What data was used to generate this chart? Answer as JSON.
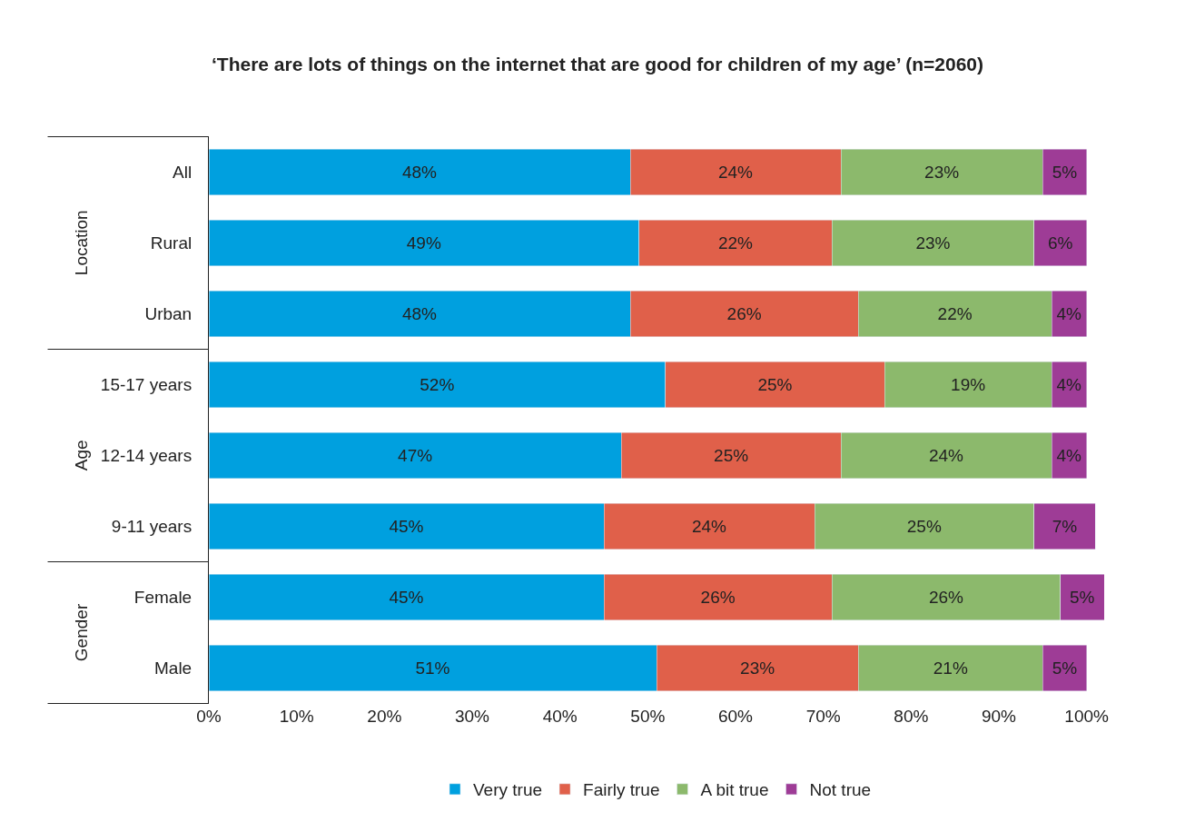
{
  "chart_data": {
    "type": "bar",
    "orientation": "horizontal",
    "stacked": true,
    "title": "‘There are lots of things on the internet that are good for children of my age’ (n=2060)",
    "categories": [
      "All",
      "Rural",
      "Urban",
      "15-17 years",
      "12-14 years",
      "9-11 years",
      "Female",
      "Male"
    ],
    "series": [
      {
        "name": "Very true",
        "color": "#00a0df",
        "values": [
          48,
          49,
          48,
          52,
          47,
          45,
          45,
          51
        ],
        "value_labels": [
          "48%",
          "49%",
          "48%",
          "52%",
          "47%",
          "45%",
          "45%",
          "51%"
        ]
      },
      {
        "name": "Fairly true",
        "color": "#e0604a",
        "values": [
          24,
          22,
          26,
          25,
          25,
          24,
          26,
          23
        ],
        "value_labels": [
          "24%",
          "22%",
          "26%",
          "25%",
          "25%",
          "24%",
          "26%",
          "23%"
        ]
      },
      {
        "name": "A bit true",
        "color": "#8cb96c",
        "values": [
          23,
          23,
          22,
          19,
          24,
          25,
          26,
          21
        ],
        "value_labels": [
          "23%",
          "23%",
          "22%",
          "19%",
          "24%",
          "25%",
          "26%",
          "21%"
        ]
      },
      {
        "name": "Not true",
        "color": "#9e3c96",
        "values": [
          5,
          6,
          4,
          4,
          4,
          7,
          5,
          5
        ],
        "value_labels": [
          "5%",
          "6%",
          "4%",
          "4%",
          "4%",
          "7%",
          "5%",
          "5%"
        ]
      }
    ],
    "xlim": [
      0,
      102
    ],
    "xticks": [
      {
        "value": 0,
        "label": "0%"
      },
      {
        "value": 10,
        "label": "10%"
      },
      {
        "value": 20,
        "label": "20%"
      },
      {
        "value": 30,
        "label": "30%"
      },
      {
        "value": 40,
        "label": "40%"
      },
      {
        "value": 50,
        "label": "50%"
      },
      {
        "value": 60,
        "label": "60%"
      },
      {
        "value": 70,
        "label": "70%"
      },
      {
        "value": 80,
        "label": "80%"
      },
      {
        "value": 90,
        "label": "90%"
      },
      {
        "value": 100,
        "label": "100%"
      }
    ],
    "grid": false,
    "legend": "bottom",
    "annotations": [
      "Location",
      "Age",
      "Gender"
    ]
  }
}
